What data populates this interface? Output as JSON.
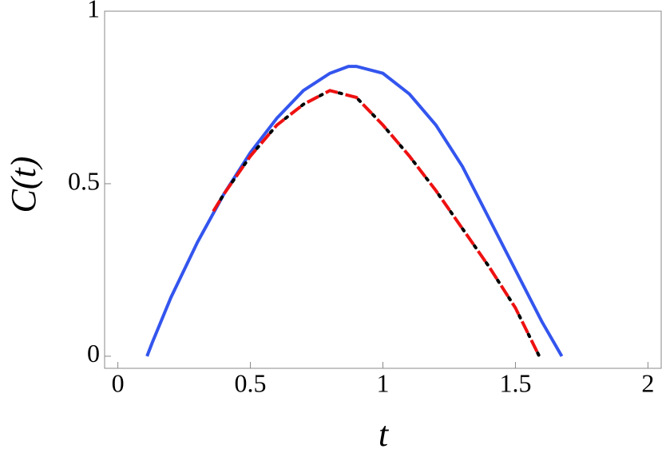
{
  "chart_data": {
    "type": "line",
    "xlabel": "t",
    "ylabel": "C(t)",
    "xlim": [
      -0.05,
      2.05
    ],
    "ylim": [
      -0.035,
      1.0
    ],
    "xticks": [
      0,
      0.5,
      1,
      1.5,
      2
    ],
    "yticks": [
      0,
      0.5,
      1
    ],
    "series": [
      {
        "color": "#3355ee",
        "style": "solid",
        "x": [
          0.11,
          0.13,
          0.2,
          0.3,
          0.4,
          0.5,
          0.6,
          0.7,
          0.8,
          0.87,
          0.9,
          1.0,
          1.1,
          1.2,
          1.3,
          1.4,
          1.5,
          1.6,
          1.675
        ],
        "values": [
          0,
          0.04,
          0.17,
          0.33,
          0.47,
          0.59,
          0.69,
          0.77,
          0.82,
          0.84,
          0.84,
          0.82,
          0.76,
          0.67,
          0.55,
          0.4,
          0.25,
          0.1,
          0
        ]
      },
      {
        "color": "#ee1111",
        "style": "dashed",
        "x": [
          0.36,
          0.4,
          0.5,
          0.6,
          0.7,
          0.8,
          0.9,
          1.0,
          1.1,
          1.2,
          1.3,
          1.4,
          1.5,
          1.59
        ],
        "values": [
          0.42,
          0.47,
          0.58,
          0.67,
          0.73,
          0.77,
          0.75,
          0.67,
          0.58,
          0.48,
          0.37,
          0.26,
          0.14,
          0
        ]
      },
      {
        "color": "#000000",
        "style": "dotted",
        "x": [
          0.36,
          0.4,
          0.5,
          0.6,
          0.7,
          0.8,
          0.9,
          1.0,
          1.1,
          1.2,
          1.3,
          1.4,
          1.5,
          1.59
        ],
        "values": [
          0.42,
          0.47,
          0.58,
          0.67,
          0.73,
          0.77,
          0.75,
          0.67,
          0.58,
          0.48,
          0.37,
          0.26,
          0.14,
          0
        ]
      }
    ]
  }
}
